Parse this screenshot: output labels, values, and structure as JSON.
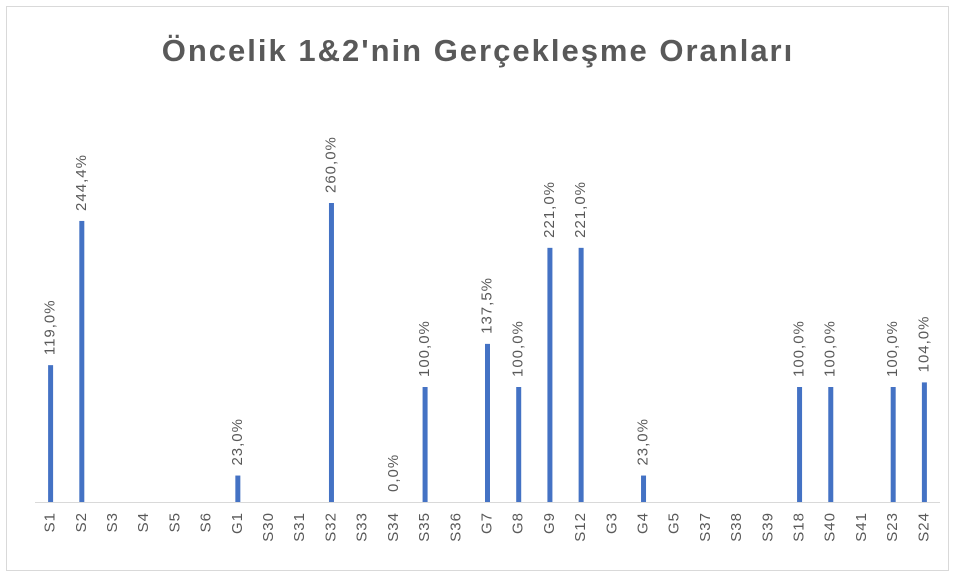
{
  "chart_data": {
    "type": "bar",
    "title": "Öncelik 1&2'nin Gerçekleşme Oranları",
    "categories": [
      "S1",
      "S2",
      "S3",
      "S4",
      "S5",
      "S6",
      "G1",
      "S30",
      "S31",
      "S32",
      "S33",
      "S34",
      "S35",
      "S36",
      "G7",
      "G8",
      "G9",
      "S12",
      "G3",
      "G4",
      "G5",
      "S37",
      "S38",
      "S39",
      "S18",
      "S40",
      "S41",
      "S23",
      "S24"
    ],
    "values": [
      119,
      244.4,
      null,
      null,
      null,
      null,
      23,
      null,
      null,
      260,
      null,
      0,
      100,
      null,
      137.5,
      100,
      221,
      221,
      null,
      23,
      null,
      null,
      null,
      null,
      100,
      100,
      null,
      100,
      104
    ],
    "value_labels": [
      "119,0%",
      "244,4%",
      null,
      null,
      null,
      null,
      "23,0%",
      null,
      null,
      "260,0%",
      null,
      "0,0%",
      "100,0%",
      null,
      "137,5%",
      "100,0%",
      "221,0%",
      "221,0%",
      null,
      "23,0%",
      null,
      null,
      null,
      null,
      "100,0%",
      "100,0%",
      null,
      "100,0%",
      "104,0%"
    ],
    "color": "#4472c4"
  }
}
